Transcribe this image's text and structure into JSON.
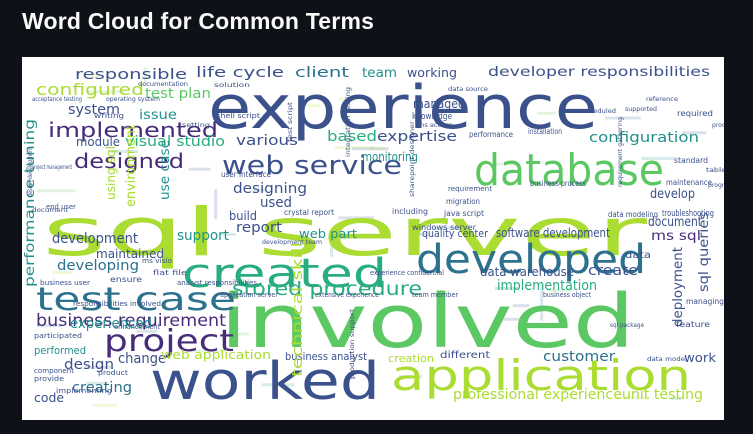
{
  "header": {
    "title": "Word Cloud for Common Terms"
  },
  "palette": [
    "#440154",
    "#472c7a",
    "#3b518b",
    "#2c718e",
    "#21908d",
    "#27ad81",
    "#5cc863",
    "#aadc32",
    "#fde725"
  ],
  "words": [
    {
      "t": "sql server",
      "c": "#aadc32"
    },
    {
      "t": "involved",
      "c": "#5cc863"
    },
    {
      "t": "experience",
      "c": "#3b518b"
    },
    {
      "t": "worked",
      "c": "#3b518b"
    },
    {
      "t": "database",
      "c": "#5cc863"
    },
    {
      "t": "created",
      "c": "#27ad81"
    },
    {
      "t": "developed",
      "c": "#2c718e"
    },
    {
      "t": "application",
      "c": "#aadc32"
    },
    {
      "t": "test case",
      "c": "#2c718e"
    },
    {
      "t": "web service",
      "c": "#3b518b"
    },
    {
      "t": "project",
      "c": "#472c7a"
    },
    {
      "t": "implemented",
      "c": "#472c7a"
    },
    {
      "t": "stored procedure",
      "c": "#27ad81"
    },
    {
      "t": "designed",
      "c": "#472c7a"
    },
    {
      "t": "business requirement",
      "c": "#472c7a"
    },
    {
      "t": "configured",
      "c": "#aadc32"
    },
    {
      "t": "responsible",
      "c": "#3b518b"
    },
    {
      "t": "life cycle",
      "c": "#3b518b"
    },
    {
      "t": "client",
      "c": "#2c718e"
    },
    {
      "t": "team",
      "c": "#21908d"
    },
    {
      "t": "working",
      "c": "#3b518b"
    },
    {
      "t": "developer responsibilities",
      "c": "#3b518b"
    },
    {
      "t": "test plan",
      "c": "#5cc863"
    },
    {
      "t": "managed",
      "c": "#3b518b"
    },
    {
      "t": "system",
      "c": "#3b518b"
    },
    {
      "t": "issue",
      "c": "#21908d"
    },
    {
      "t": "configuration",
      "c": "#21908d"
    },
    {
      "t": "based",
      "c": "#27ad81"
    },
    {
      "t": "expertise",
      "c": "#3b518b"
    },
    {
      "t": "module",
      "c": "#3b518b"
    },
    {
      "t": "visual studio",
      "c": "#27ad81"
    },
    {
      "t": "various",
      "c": "#3b518b"
    },
    {
      "t": "use case",
      "c": "#21908d"
    },
    {
      "t": "designing",
      "c": "#3b518b"
    },
    {
      "t": "develop",
      "c": "#3b518b"
    },
    {
      "t": "document",
      "c": "#3b518b"
    },
    {
      "t": "ms sql",
      "c": "#472c7a"
    },
    {
      "t": "sql queries",
      "c": "#3b518b"
    },
    {
      "t": "used",
      "c": "#3b518b"
    },
    {
      "t": "report",
      "c": "#3b518b"
    },
    {
      "t": "support",
      "c": "#21908d"
    },
    {
      "t": "web part",
      "c": "#21908d"
    },
    {
      "t": "development",
      "c": "#3b518b"
    },
    {
      "t": "maintained",
      "c": "#3b518b"
    },
    {
      "t": "developing",
      "c": "#2c718e"
    },
    {
      "t": "quality center",
      "c": "#3b518b"
    },
    {
      "t": "software development",
      "c": "#3b518b"
    },
    {
      "t": "data warehouse",
      "c": "#3b518b"
    },
    {
      "t": "create",
      "c": "#3b518b"
    },
    {
      "t": "implementation",
      "c": "#27ad81"
    },
    {
      "t": "deployment",
      "c": "#3b518b"
    },
    {
      "t": "experienced",
      "c": "#21908d"
    },
    {
      "t": "change",
      "c": "#3b518b"
    },
    {
      "t": "web application",
      "c": "#aadc32"
    },
    {
      "t": "business analyst",
      "c": "#3b518b"
    },
    {
      "t": "customer",
      "c": "#2c718e"
    },
    {
      "t": "design",
      "c": "#3b518b"
    },
    {
      "t": "creating",
      "c": "#2c718e"
    },
    {
      "t": "code",
      "c": "#3b518b"
    },
    {
      "t": "technical skill",
      "c": "#aadc32"
    },
    {
      "t": "performance tuning",
      "c": "#21908d"
    },
    {
      "t": "professional experienceunit testing",
      "c": "#aadc32"
    },
    {
      "t": "work",
      "c": "#3b518b"
    },
    {
      "t": "performed",
      "c": "#21908d"
    },
    {
      "t": "creation",
      "c": "#aadc32"
    },
    {
      "t": "different",
      "c": "#3b518b"
    },
    {
      "t": "monitoring",
      "c": "#21908d"
    },
    {
      "t": "environment",
      "c": "#aadc32"
    },
    {
      "t": "using sql",
      "c": "#aadc32"
    },
    {
      "t": "knowledge",
      "c": "#3b518b"
    },
    {
      "t": "build",
      "c": "#3b518b"
    },
    {
      "t": "data",
      "c": "#3b518b"
    },
    {
      "t": "data modeling",
      "c": "#3b518b"
    },
    {
      "t": "troubleshooting",
      "c": "#3b518b"
    },
    {
      "t": "maintenance",
      "c": "#3b518b"
    },
    {
      "t": "standard",
      "c": "#3b518b"
    },
    {
      "t": "managing",
      "c": "#3b518b"
    },
    {
      "t": "feature",
      "c": "#3b518b"
    },
    {
      "t": "required",
      "c": "#3b518b"
    },
    {
      "t": "installation",
      "c": "#3b518b"
    },
    {
      "t": "performance",
      "c": "#3b518b"
    },
    {
      "t": "business process",
      "c": "#3b518b"
    },
    {
      "t": "requirement",
      "c": "#3b518b"
    },
    {
      "t": "migration",
      "c": "#3b518b"
    },
    {
      "t": "java script",
      "c": "#3b518b"
    },
    {
      "t": "windows server",
      "c": "#3b518b"
    },
    {
      "t": "including",
      "c": "#3b518b"
    },
    {
      "t": "crystal report",
      "c": "#3b518b"
    },
    {
      "t": "user interface",
      "c": "#3b518b"
    },
    {
      "t": "shell script",
      "c": "#3b518b"
    },
    {
      "t": "ensure",
      "c": "#3b518b"
    },
    {
      "t": "flat file",
      "c": "#3b518b"
    },
    {
      "t": "ms visio",
      "c": "#3b518b"
    },
    {
      "t": "analyst responsibilities",
      "c": "#3b518b"
    },
    {
      "t": "business user",
      "c": "#3b518b"
    },
    {
      "t": "responsibilities involved",
      "c": "#3b518b"
    },
    {
      "t": "enhancement",
      "c": "#3b518b"
    },
    {
      "t": "participated",
      "c": "#3b518b"
    },
    {
      "t": "application server",
      "c": "#3b518b"
    },
    {
      "t": "extensive experience",
      "c": "#3b518b"
    },
    {
      "t": "team member",
      "c": "#3b518b"
    },
    {
      "t": "experience confidential",
      "c": "#3b518b"
    },
    {
      "t": "business object",
      "c": "#3b518b"
    },
    {
      "t": "provide",
      "c": "#3b518b"
    },
    {
      "t": "product",
      "c": "#3b518b"
    },
    {
      "t": "component",
      "c": "#3b518b"
    },
    {
      "t": "implementing",
      "c": "#3b518b"
    },
    {
      "t": "end user",
      "c": "#3b518b"
    },
    {
      "t": "project management",
      "c": "#3b518b"
    },
    {
      "t": "design development",
      "c": "#3b518b"
    },
    {
      "t": "writing",
      "c": "#3b518b"
    },
    {
      "t": "acceptance testing",
      "c": "#3b518b"
    },
    {
      "t": "operating system",
      "c": "#3b518b"
    },
    {
      "t": "setting",
      "c": "#3b518b"
    },
    {
      "t": "documentation",
      "c": "#3b518b"
    },
    {
      "t": "solution",
      "c": "#3b518b"
    },
    {
      "t": "test script",
      "c": "#3b518b"
    },
    {
      "t": "integration testing",
      "c": "#3b518b"
    },
    {
      "t": "data source",
      "c": "#3b518b"
    },
    {
      "t": "ms access",
      "c": "#3b518b"
    },
    {
      "t": "sharepoint designer",
      "c": "#3b518b"
    },
    {
      "t": "development team",
      "c": "#3b518b"
    },
    {
      "t": "production support",
      "c": "#3b518b"
    },
    {
      "t": "data model",
      "c": "#3b518b"
    },
    {
      "t": "table",
      "c": "#3b518b"
    },
    {
      "t": "program",
      "c": "#3b518b"
    },
    {
      "t": "processes",
      "c": "#3b518b"
    },
    {
      "t": "reference",
      "c": "#3b518b"
    },
    {
      "t": "supported",
      "c": "#3b518b"
    },
    {
      "t": "scheduled",
      "c": "#3b518b"
    },
    {
      "t": "requirement gathering",
      "c": "#3b518b"
    },
    {
      "t": "sql package",
      "c": "#3b518b"
    },
    {
      "t": "document",
      "c": "#3b518b"
    }
  ]
}
